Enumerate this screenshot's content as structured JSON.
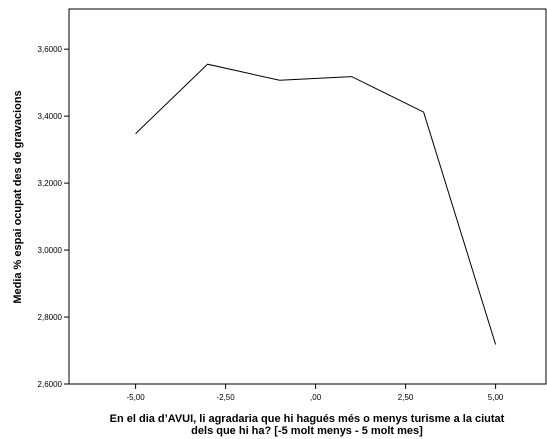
{
  "chart_data": {
    "type": "line",
    "title": "",
    "xlabel": "En el dia d’AVUI, li agradaria que hi hagués més o menys turisme a la ciutat dels que hi ha? [-5 molt menys - 5 molt mes]",
    "xlabel_lines": [
      "En el dia d’AVUI, li agradaria que hi hagués més o menys turisme a la ciutat",
      "dels que hi ha? [-5 molt menys - 5 molt mes]"
    ],
    "ylabel": "Media % espai ocupat des de gravacions",
    "x": [
      -5,
      -3,
      -1,
      1,
      3,
      5
    ],
    "values": [
      3.348,
      3.555,
      3.507,
      3.518,
      3.412,
      2.718
    ],
    "xlim": [
      -6.85,
      6.4
    ],
    "ylim": [
      2.6,
      3.72
    ],
    "x_ticks": [
      -5,
      -2.5,
      0,
      2.5,
      5
    ],
    "x_tick_labels": [
      "-5,00",
      "-2,50",
      ",00",
      "2,50",
      "5,00"
    ],
    "y_ticks": [
      2.6,
      2.8,
      3.0,
      3.2,
      3.4,
      3.6
    ],
    "y_tick_labels": [
      "2,6000",
      "2,8000",
      "3,0000",
      "3,2000",
      "3,4000",
      "3,6000"
    ],
    "grid": false,
    "legend": "none",
    "line_color": "#000000",
    "frame_color": "#000000"
  }
}
